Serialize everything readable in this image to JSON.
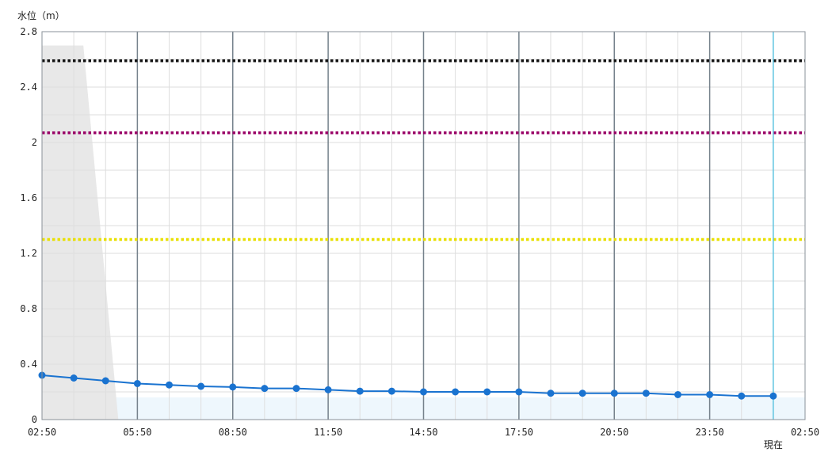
{
  "chart_data": {
    "type": "line",
    "ylabel": "水位（m）",
    "ylim": [
      0,
      2.8
    ],
    "y_ticks": [
      "0",
      "0.4",
      "0.8",
      "1.2",
      "1.6",
      "2",
      "2.4",
      "2.8"
    ],
    "y_tick_values": [
      0,
      0.4,
      0.8,
      1.2,
      1.6,
      2.0,
      2.4,
      2.8
    ],
    "x_range_hours": [
      0,
      24
    ],
    "x_ticks": [
      "02:50",
      "05:50",
      "08:50",
      "11:50",
      "14:50",
      "17:50",
      "20:50",
      "23:50",
      "02:50"
    ],
    "now_label": "現在",
    "now_x_hours": 23,
    "grid": true,
    "thresholds": [
      {
        "value": 2.59,
        "color": "#111111"
      },
      {
        "value": 2.07,
        "color": "#990066"
      },
      {
        "value": 1.3,
        "color": "#e8e000"
      }
    ],
    "shaded_band": {
      "color": "#e8e8e8",
      "points": [
        [
          0,
          2.7
        ],
        [
          1.3,
          2.7
        ],
        [
          2.4,
          0
        ],
        [
          0,
          0
        ]
      ]
    },
    "baseline_band": {
      "value": 0.16,
      "color": "#eef7fd"
    },
    "series": [
      {
        "color": "#1a73d0",
        "x": [
          0,
          1,
          2,
          3,
          4,
          5,
          6,
          7,
          8,
          9,
          10,
          11,
          12,
          13,
          14,
          15,
          16,
          17,
          18,
          19,
          20,
          21,
          22,
          23
        ],
        "values": [
          0.32,
          0.3,
          0.28,
          0.26,
          0.25,
          0.24,
          0.235,
          0.225,
          0.225,
          0.215,
          0.205,
          0.205,
          0.2,
          0.2,
          0.2,
          0.2,
          0.19,
          0.19,
          0.19,
          0.19,
          0.18,
          0.18,
          0.17,
          0.17
        ]
      }
    ]
  }
}
